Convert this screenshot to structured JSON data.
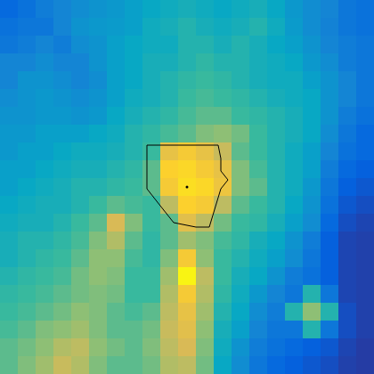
{
  "chart_data": {
    "type": "heatmap",
    "tick_labels": false,
    "color_range": [
      0,
      1
    ],
    "cells": [
      [
        0.15,
        0.18,
        0.22,
        0.25,
        0.28,
        0.3,
        0.32,
        0.35,
        0.38,
        0.4,
        0.42,
        0.4,
        0.38,
        0.4,
        0.42,
        0.38,
        0.32,
        0.28,
        0.25,
        0.2,
        0.18
      ],
      [
        0.18,
        0.2,
        0.2,
        0.25,
        0.3,
        0.32,
        0.33,
        0.35,
        0.4,
        0.42,
        0.45,
        0.42,
        0.4,
        0.42,
        0.45,
        0.4,
        0.33,
        0.28,
        0.24,
        0.2,
        0.18
      ],
      [
        0.2,
        0.22,
        0.25,
        0.22,
        0.28,
        0.3,
        0.35,
        0.38,
        0.4,
        0.4,
        0.45,
        0.45,
        0.42,
        0.45,
        0.42,
        0.38,
        0.35,
        0.3,
        0.25,
        0.22,
        0.2
      ],
      [
        0.25,
        0.25,
        0.28,
        0.25,
        0.25,
        0.3,
        0.35,
        0.38,
        0.42,
        0.42,
        0.45,
        0.48,
        0.45,
        0.45,
        0.42,
        0.4,
        0.38,
        0.32,
        0.28,
        0.22,
        0.2
      ],
      [
        0.25,
        0.3,
        0.3,
        0.28,
        0.25,
        0.28,
        0.35,
        0.38,
        0.42,
        0.45,
        0.48,
        0.5,
        0.48,
        0.45,
        0.42,
        0.4,
        0.4,
        0.35,
        0.3,
        0.25,
        0.2
      ],
      [
        0.28,
        0.3,
        0.32,
        0.3,
        0.28,
        0.3,
        0.35,
        0.4,
        0.42,
        0.45,
        0.5,
        0.52,
        0.5,
        0.48,
        0.45,
        0.42,
        0.4,
        0.38,
        0.3,
        0.25,
        0.2
      ],
      [
        0.3,
        0.3,
        0.32,
        0.32,
        0.3,
        0.32,
        0.38,
        0.42,
        0.45,
        0.48,
        0.52,
        0.55,
        0.55,
        0.5,
        0.48,
        0.45,
        0.42,
        0.38,
        0.3,
        0.22,
        0.18
      ],
      [
        0.32,
        0.32,
        0.35,
        0.35,
        0.35,
        0.38,
        0.4,
        0.45,
        0.48,
        0.52,
        0.55,
        0.6,
        0.62,
        0.58,
        0.5,
        0.45,
        0.42,
        0.38,
        0.28,
        0.2,
        0.15
      ],
      [
        0.32,
        0.35,
        0.35,
        0.38,
        0.4,
        0.4,
        0.42,
        0.45,
        0.5,
        0.8,
        0.85,
        0.8,
        0.72,
        0.55,
        0.5,
        0.45,
        0.4,
        0.35,
        0.25,
        0.18,
        0.15
      ],
      [
        0.35,
        0.35,
        0.38,
        0.4,
        0.42,
        0.42,
        0.45,
        0.48,
        0.55,
        0.88,
        0.9,
        0.85,
        0.8,
        0.6,
        0.52,
        0.45,
        0.4,
        0.35,
        0.22,
        0.15,
        0.12
      ],
      [
        0.35,
        0.38,
        0.4,
        0.42,
        0.45,
        0.45,
        0.48,
        0.5,
        0.55,
        0.85,
        0.92,
        0.9,
        0.82,
        0.6,
        0.55,
        0.45,
        0.4,
        0.32,
        0.2,
        0.12,
        0.1
      ],
      [
        0.38,
        0.4,
        0.42,
        0.42,
        0.45,
        0.5,
        0.55,
        0.52,
        0.5,
        0.7,
        0.88,
        0.85,
        0.7,
        0.55,
        0.5,
        0.45,
        0.38,
        0.3,
        0.18,
        0.1,
        0.08
      ],
      [
        0.4,
        0.42,
        0.42,
        0.45,
        0.5,
        0.55,
        0.75,
        0.6,
        0.5,
        0.55,
        0.78,
        0.7,
        0.58,
        0.5,
        0.48,
        0.42,
        0.35,
        0.28,
        0.15,
        0.08,
        0.06
      ],
      [
        0.42,
        0.45,
        0.45,
        0.48,
        0.52,
        0.6,
        0.68,
        0.55,
        0.48,
        0.55,
        0.65,
        0.6,
        0.52,
        0.48,
        0.42,
        0.38,
        0.3,
        0.22,
        0.12,
        0.06,
        0.05
      ],
      [
        0.42,
        0.45,
        0.48,
        0.5,
        0.55,
        0.62,
        0.62,
        0.52,
        0.48,
        0.6,
        0.85,
        0.62,
        0.5,
        0.45,
        0.4,
        0.35,
        0.28,
        0.2,
        0.12,
        0.06,
        0.05
      ],
      [
        0.45,
        0.48,
        0.5,
        0.52,
        0.58,
        0.62,
        0.6,
        0.5,
        0.5,
        0.65,
        0.98,
        0.7,
        0.5,
        0.42,
        0.38,
        0.3,
        0.22,
        0.18,
        0.12,
        0.06,
        0.05
      ],
      [
        0.48,
        0.5,
        0.52,
        0.55,
        0.58,
        0.6,
        0.58,
        0.5,
        0.5,
        0.68,
        0.85,
        0.68,
        0.48,
        0.4,
        0.32,
        0.25,
        0.2,
        0.45,
        0.2,
        0.06,
        0.05
      ],
      [
        0.5,
        0.52,
        0.55,
        0.58,
        0.62,
        0.6,
        0.55,
        0.52,
        0.55,
        0.7,
        0.8,
        0.65,
        0.45,
        0.38,
        0.28,
        0.22,
        0.45,
        0.62,
        0.45,
        0.08,
        0.05
      ],
      [
        0.52,
        0.55,
        0.6,
        0.62,
        0.65,
        0.6,
        0.55,
        0.55,
        0.58,
        0.72,
        0.78,
        0.62,
        0.42,
        0.35,
        0.25,
        0.2,
        0.2,
        0.45,
        0.2,
        0.08,
        0.05
      ],
      [
        0.55,
        0.58,
        0.62,
        0.68,
        0.7,
        0.62,
        0.58,
        0.55,
        0.6,
        0.7,
        0.75,
        0.6,
        0.4,
        0.3,
        0.22,
        0.18,
        0.15,
        0.12,
        0.1,
        0.06,
        0.04
      ],
      [
        0.55,
        0.6,
        0.65,
        0.72,
        0.68,
        0.6,
        0.55,
        0.55,
        0.58,
        0.68,
        0.7,
        0.58,
        0.38,
        0.28,
        0.2,
        0.15,
        0.12,
        0.1,
        0.08,
        0.05,
        0.04
      ]
    ],
    "contour": [
      [
        8.25,
        8.15
      ],
      [
        12.25,
        8.15
      ],
      [
        12.4,
        8.9
      ],
      [
        12.4,
        9.6
      ],
      [
        12.8,
        10.1
      ],
      [
        12.4,
        10.6
      ],
      [
        11.75,
        12.75
      ],
      [
        11.0,
        12.75
      ],
      [
        9.75,
        12.5
      ],
      [
        8.8,
        11.3
      ],
      [
        8.25,
        10.6
      ],
      [
        8.25,
        8.15
      ]
    ],
    "center": [
      10.5,
      10.5
    ]
  }
}
